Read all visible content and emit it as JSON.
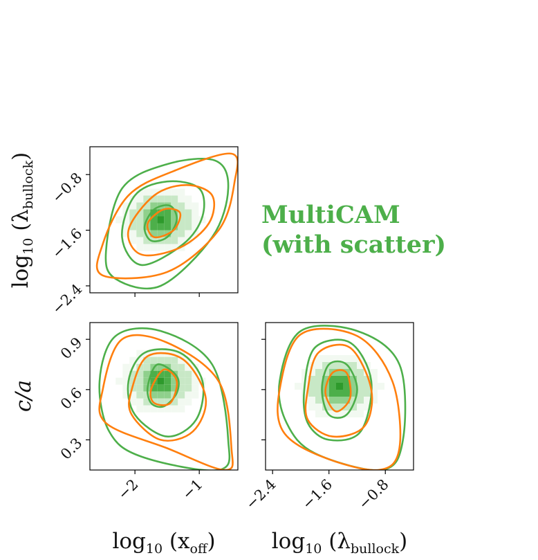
{
  "colors": {
    "multicam": "#4daf4a",
    "reference": "#ff7f0e",
    "density_ramp": [
      "#f2f9f1",
      "#c8e8c6",
      "#8fd08c",
      "#4daf4a",
      "#2e9a2c"
    ]
  },
  "legend": {
    "line1": "MultiCAM",
    "line2": "(with scatter)"
  },
  "labels": {
    "lambda_y": {
      "main": "log",
      "sub": "10",
      "open": " (λ",
      "varsub": "bullock",
      "close": ")"
    },
    "ca_y": {
      "main": "c/a"
    },
    "xoff_x": {
      "main": "log",
      "sub": "10",
      "open": " (x",
      "varsub": "off",
      "close": ")"
    },
    "lambda_x": {
      "main": "log",
      "sub": "10",
      "open": " (λ",
      "varsub": "bullock",
      "close": ")"
    }
  },
  "chart_data": [
    {
      "type": "heatmap",
      "panel": "log10(x_off) vs log10(lambda_bullock)",
      "xlim": [
        -2.7,
        -0.4
      ],
      "ylim": [
        -2.5,
        -0.4
      ],
      "xticks": [
        -2,
        -1
      ],
      "xtick_labels": [],
      "yticks": [
        -0.8,
        -1.6,
        -2.4
      ],
      "ytick_labels": [
        "−0.8",
        "−1.6",
        "−2.4"
      ],
      "density_peak": [
        -1.6,
        -1.45
      ],
      "contour_series": [
        {
          "color": "multicam",
          "levels": [
            [
              [
                -1.85,
                -1.55
              ],
              [
                -1.7,
                -1.3
              ],
              [
                -1.45,
                -1.25
              ],
              [
                -1.35,
                -1.45
              ],
              [
                -1.5,
                -1.7
              ],
              [
                -1.75,
                -1.75
              ],
              [
                -1.85,
                -1.55
              ]
            ],
            [
              [
                -2.2,
                -1.7
              ],
              [
                -2.0,
                -1.1
              ],
              [
                -1.5,
                -0.9
              ],
              [
                -1.0,
                -1.0
              ],
              [
                -0.95,
                -1.4
              ],
              [
                -1.25,
                -1.8
              ],
              [
                -1.9,
                -2.1
              ],
              [
                -2.2,
                -1.7
              ]
            ],
            [
              [
                -2.45,
                -1.9
              ],
              [
                -2.2,
                -1.0
              ],
              [
                -1.5,
                -0.65
              ],
              [
                -0.75,
                -0.6
              ],
              [
                -0.55,
                -1.0
              ],
              [
                -0.8,
                -1.7
              ],
              [
                -1.6,
                -2.4
              ],
              [
                -2.3,
                -2.3
              ],
              [
                -2.45,
                -1.9
              ]
            ]
          ]
        },
        {
          "color": "reference",
          "levels": [
            [
              [
                -1.8,
                -1.5
              ],
              [
                -1.55,
                -1.3
              ],
              [
                -1.3,
                -1.35
              ],
              [
                -1.4,
                -1.6
              ],
              [
                -1.7,
                -1.7
              ],
              [
                -1.8,
                -1.5
              ]
            ],
            [
              [
                -2.1,
                -1.6
              ],
              [
                -1.7,
                -1.1
              ],
              [
                -1.2,
                -0.95
              ],
              [
                -0.8,
                -1.1
              ],
              [
                -0.85,
                -1.5
              ],
              [
                -1.3,
                -1.85
              ],
              [
                -1.9,
                -1.95
              ],
              [
                -2.1,
                -1.6
              ]
            ],
            [
              [
                -2.5,
                -1.8
              ],
              [
                -2.1,
                -1.1
              ],
              [
                -1.4,
                -0.75
              ],
              [
                -0.5,
                -0.5
              ],
              [
                -0.45,
                -0.9
              ],
              [
                -0.7,
                -1.6
              ],
              [
                -1.5,
                -2.2
              ],
              [
                -2.5,
                -2.25
              ],
              [
                -2.5,
                -1.8
              ]
            ]
          ]
        }
      ]
    },
    {
      "type": "heatmap",
      "panel": "log10(x_off) vs c/a",
      "xlim": [
        -2.7,
        -0.4
      ],
      "ylim": [
        0.12,
        1.0
      ],
      "xticks": [
        -2,
        -1
      ],
      "xtick_labels": [
        "−2",
        "−1"
      ],
      "yticks": [
        0.9,
        0.6,
        0.3
      ],
      "ytick_labels": [
        "0.9",
        "0.6",
        "0.3"
      ],
      "density_peak": [
        -1.6,
        0.65
      ],
      "contour_series": [
        {
          "color": "multicam",
          "levels": [
            [
              [
                -1.8,
                0.62
              ],
              [
                -1.65,
                0.75
              ],
              [
                -1.35,
                0.68
              ],
              [
                -1.35,
                0.58
              ],
              [
                -1.55,
                0.5
              ],
              [
                -1.75,
                0.52
              ],
              [
                -1.8,
                0.62
              ]
            ],
            [
              [
                -2.1,
                0.65
              ],
              [
                -1.85,
                0.82
              ],
              [
                -1.3,
                0.82
              ],
              [
                -0.95,
                0.65
              ],
              [
                -1.05,
                0.42
              ],
              [
                -1.5,
                0.32
              ],
              [
                -2.0,
                0.45
              ],
              [
                -2.1,
                0.65
              ]
            ],
            [
              [
                -2.55,
                0.65
              ],
              [
                -2.3,
                0.92
              ],
              [
                -1.6,
                0.95
              ],
              [
                -0.8,
                0.75
              ],
              [
                -0.55,
                0.3
              ],
              [
                -0.7,
                0.12
              ],
              [
                -1.9,
                0.2
              ],
              [
                -2.4,
                0.35
              ],
              [
                -2.55,
                0.65
              ]
            ]
          ]
        },
        {
          "color": "reference",
          "levels": [
            [
              [
                -1.75,
                0.6
              ],
              [
                -1.55,
                0.72
              ],
              [
                -1.35,
                0.65
              ],
              [
                -1.45,
                0.52
              ],
              [
                -1.7,
                0.52
              ],
              [
                -1.75,
                0.6
              ]
            ],
            [
              [
                -2.05,
                0.6
              ],
              [
                -1.8,
                0.8
              ],
              [
                -1.25,
                0.78
              ],
              [
                -0.9,
                0.55
              ],
              [
                -1.1,
                0.35
              ],
              [
                -1.6,
                0.3
              ],
              [
                -2.05,
                0.45
              ],
              [
                -2.05,
                0.6
              ]
            ],
            [
              [
                -2.5,
                0.6
              ],
              [
                -2.2,
                0.9
              ],
              [
                -1.5,
                0.88
              ],
              [
                -0.7,
                0.65
              ],
              [
                -0.5,
                0.25
              ],
              [
                -0.6,
                0.12
              ],
              [
                -1.5,
                0.25
              ],
              [
                -2.45,
                0.4
              ],
              [
                -2.5,
                0.6
              ]
            ]
          ]
        }
      ]
    },
    {
      "type": "heatmap",
      "panel": "log10(lambda_bullock) vs c/a",
      "xlim": [
        -2.5,
        -0.4
      ],
      "ylim": [
        0.12,
        1.0
      ],
      "xticks": [
        -2.4,
        -1.6,
        -0.8
      ],
      "xtick_labels": [
        "−2.4",
        "−1.6",
        "−0.8"
      ],
      "yticks": [
        0.9,
        0.6,
        0.3
      ],
      "ytick_labels": [],
      "density_peak": [
        -1.45,
        0.62
      ],
      "contour_series": [
        {
          "color": "multicam",
          "levels": [
            [
              [
                -1.7,
                0.6
              ],
              [
                -1.6,
                0.75
              ],
              [
                -1.35,
                0.75
              ],
              [
                -1.2,
                0.6
              ],
              [
                -1.35,
                0.45
              ],
              [
                -1.6,
                0.45
              ],
              [
                -1.7,
                0.6
              ]
            ],
            [
              [
                -1.95,
                0.6
              ],
              [
                -1.8,
                0.85
              ],
              [
                -1.3,
                0.88
              ],
              [
                -1.0,
                0.65
              ],
              [
                -1.15,
                0.35
              ],
              [
                -1.6,
                0.3
              ],
              [
                -1.9,
                0.4
              ],
              [
                -1.95,
                0.6
              ]
            ],
            [
              [
                -2.3,
                0.65
              ],
              [
                -2.0,
                0.95
              ],
              [
                -1.2,
                0.95
              ],
              [
                -0.6,
                0.75
              ],
              [
                -0.55,
                0.3
              ],
              [
                -0.85,
                0.12
              ],
              [
                -1.8,
                0.22
              ],
              [
                -2.2,
                0.4
              ],
              [
                -2.3,
                0.65
              ]
            ]
          ]
        },
        {
          "color": "reference",
          "levels": [
            [
              [
                -1.65,
                0.58
              ],
              [
                -1.55,
                0.7
              ],
              [
                -1.35,
                0.7
              ],
              [
                -1.3,
                0.55
              ],
              [
                -1.5,
                0.47
              ],
              [
                -1.65,
                0.58
              ]
            ],
            [
              [
                -1.9,
                0.6
              ],
              [
                -1.75,
                0.82
              ],
              [
                -1.3,
                0.85
              ],
              [
                -1.0,
                0.6
              ],
              [
                -1.1,
                0.38
              ],
              [
                -1.55,
                0.32
              ],
              [
                -1.9,
                0.42
              ],
              [
                -1.9,
                0.6
              ]
            ],
            [
              [
                -2.3,
                0.6
              ],
              [
                -2.0,
                0.93
              ],
              [
                -1.2,
                0.92
              ],
              [
                -0.7,
                0.65
              ],
              [
                -0.6,
                0.25
              ],
              [
                -0.9,
                0.12
              ],
              [
                -1.7,
                0.2
              ],
              [
                -2.25,
                0.35
              ],
              [
                -2.3,
                0.6
              ]
            ]
          ]
        }
      ]
    }
  ]
}
